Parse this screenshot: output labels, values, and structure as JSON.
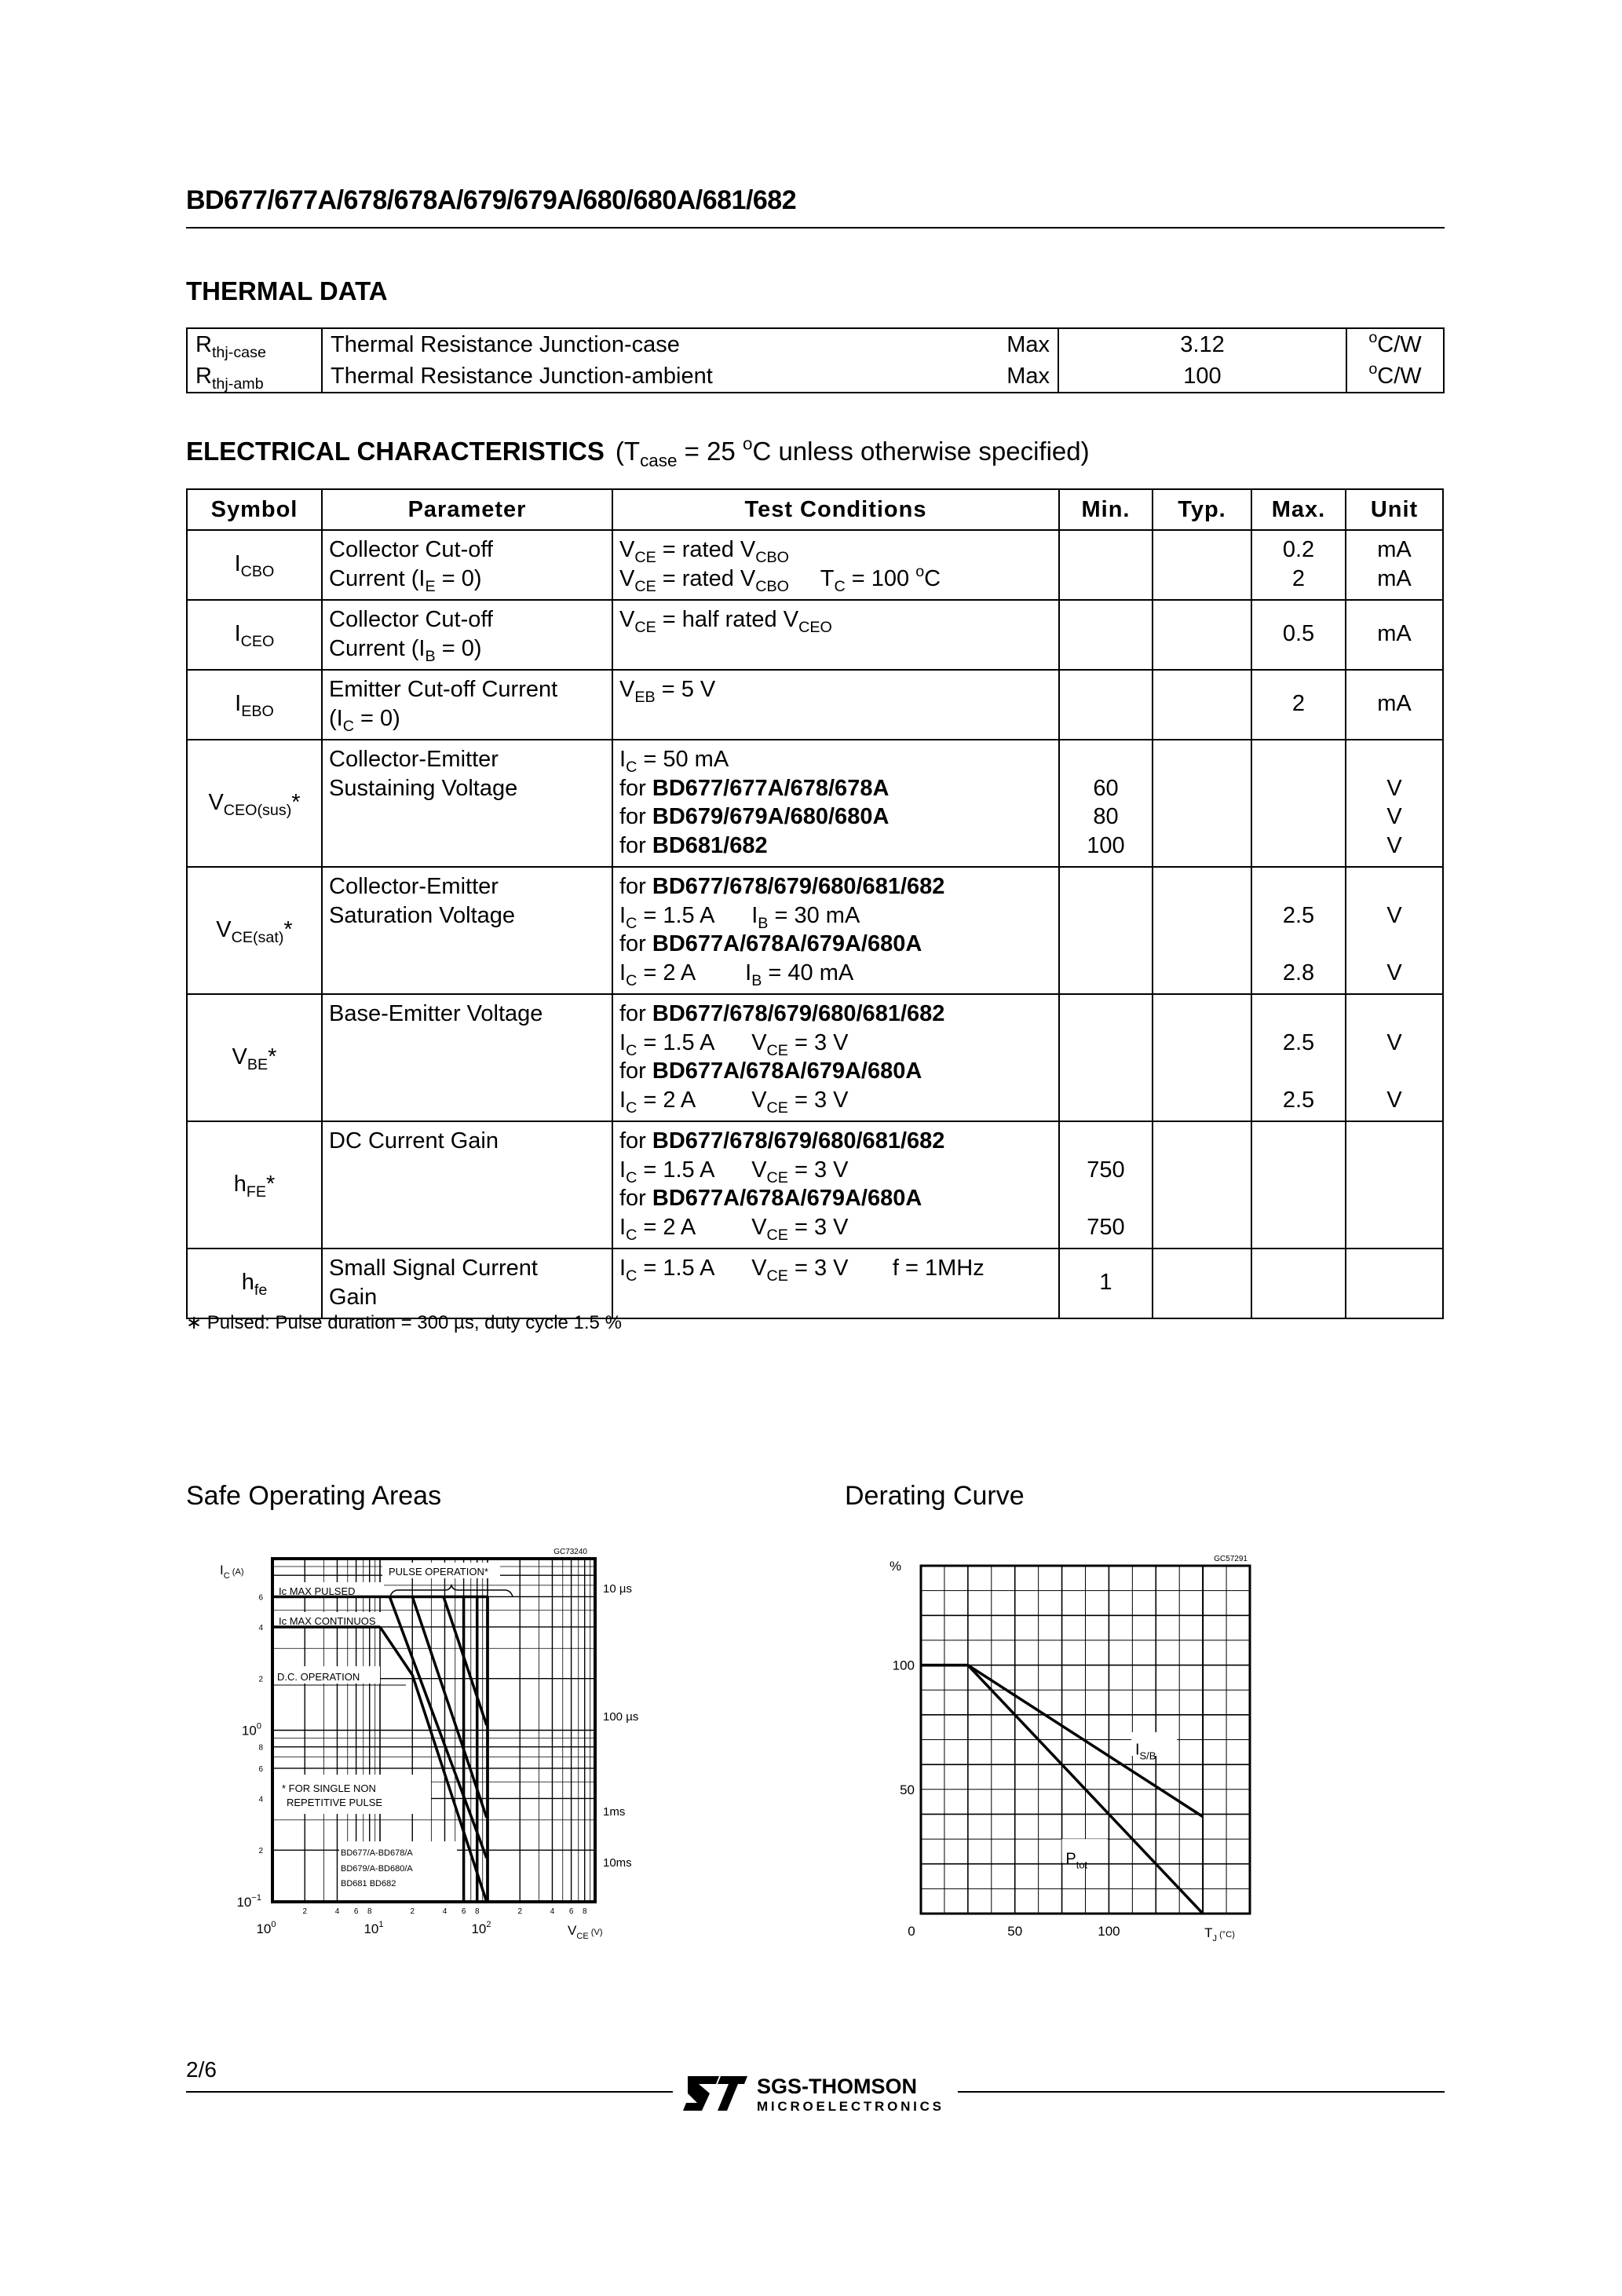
{
  "header": {
    "title": "BD677/677A/678/678A/679/679A/680/680A/681/682"
  },
  "thermal": {
    "heading": "THERMAL  DATA",
    "rows": [
      {
        "symbol": [
          [
            "R",
            {
              "sub": "thj-case"
            }
          ]
        ],
        "description": "Thermal   Resistance   Junction-case",
        "qualifier": "Max",
        "value": "3.12",
        "unit": [
          [
            {
              "sup": "o"
            },
            "C/W"
          ]
        ]
      },
      {
        "symbol": [
          [
            "R",
            {
              "sub": "thj-amb"
            }
          ]
        ],
        "description": "Thermal   Resistance   Junction-ambient",
        "qualifier": "Max",
        "value": "100",
        "unit": [
          [
            {
              "sup": "o"
            },
            "C/W"
          ]
        ]
      }
    ]
  },
  "electrical": {
    "heading": "ELECTRICAL  CHARACTERISTICS",
    "condition": [
      [
        "(T",
        {
          "sub": "case"
        },
        " = 25 ",
        {
          "sup": "o"
        },
        "C unless otherwise specified)"
      ]
    ],
    "columns": [
      "Symbol",
      "Parameter",
      "Test Conditions",
      "Min.",
      "Typ.",
      "Max.",
      "Unit"
    ],
    "rows": [
      {
        "symbol": [
          [
            "I",
            {
              "sub": "CBO"
            }
          ]
        ],
        "parameter": [
          [
            "Collector Cut-off"
          ],
          [
            "Current (I",
            {
              "sub": "E"
            },
            " = 0)"
          ]
        ],
        "conditions": [
          [
            "V",
            {
              "sub": "CE"
            },
            " = rated V",
            {
              "sub": "CBO"
            }
          ],
          [
            "V",
            {
              "sub": "CE"
            },
            " = rated V",
            {
              "sub": "CBO"
            },
            "     T",
            {
              "sub": "C"
            },
            " = 100 ",
            {
              "sup": "o"
            },
            "C"
          ]
        ],
        "min": [],
        "typ": [],
        "max": [
          [
            "0.2"
          ],
          [
            "2"
          ]
        ],
        "unit": [
          [
            "mA"
          ],
          [
            "mA"
          ]
        ]
      },
      {
        "symbol": [
          [
            "I",
            {
              "sub": "CEO"
            }
          ]
        ],
        "parameter": [
          [
            "Collector Cut-off"
          ],
          [
            "Current (I",
            {
              "sub": "B"
            },
            " = 0)"
          ]
        ],
        "conditions": [
          [
            "V",
            {
              "sub": "CE"
            },
            " = half rated V",
            {
              "sub": "CEO"
            }
          ]
        ],
        "min": [],
        "typ": [],
        "max": [
          [
            "0.5"
          ]
        ],
        "unit": [
          [
            "mA"
          ]
        ]
      },
      {
        "symbol": [
          [
            "I",
            {
              "sub": "EBO"
            }
          ]
        ],
        "parameter": [
          [
            "Emitter Cut-off Current"
          ],
          [
            "(I",
            {
              "sub": "C"
            },
            " = 0)"
          ]
        ],
        "conditions": [
          [
            "V",
            {
              "sub": "EB"
            },
            " = 5 V"
          ]
        ],
        "min": [],
        "typ": [],
        "max": [
          [
            "2"
          ]
        ],
        "unit": [
          [
            "mA"
          ]
        ]
      },
      {
        "symbol": [
          [
            "V",
            {
              "sub": "CEO(sus)"
            },
            "*"
          ]
        ],
        "parameter": [
          [
            "Collector-Emitter"
          ],
          [
            "Sustaining Voltage"
          ]
        ],
        "conditions": [
          [
            "I",
            {
              "sub": "C"
            },
            " = 50 mA"
          ],
          [
            "for ",
            {
              "b": "BD677/677A/678/678A"
            }
          ],
          [
            "for ",
            {
              "b": "BD679/679A/680/680A"
            }
          ],
          [
            "for ",
            {
              "b": "BD681/682"
            }
          ]
        ],
        "min": [
          [
            ""
          ],
          [
            "60"
          ],
          [
            "80"
          ],
          [
            "100"
          ]
        ],
        "typ": [],
        "max": [],
        "unit": [
          [
            ""
          ],
          [
            "V"
          ],
          [
            "V"
          ],
          [
            "V"
          ]
        ]
      },
      {
        "symbol": [
          [
            "V",
            {
              "sub": "CE(sat)"
            },
            "*"
          ]
        ],
        "parameter": [
          [
            "Collector-Emitter"
          ],
          [
            "Saturation Voltage"
          ]
        ],
        "conditions": [
          [
            "for ",
            {
              "b": "BD677/678/679/680/681/682"
            }
          ],
          [
            "I",
            {
              "sub": "C"
            },
            " = 1.5 A      I",
            {
              "sub": "B"
            },
            " = 30 mA"
          ],
          [
            "for ",
            {
              "b": "BD677A/678A/679A/680A"
            }
          ],
          [
            "I",
            {
              "sub": "C"
            },
            " = 2 A        I",
            {
              "sub": "B"
            },
            " = 40 mA"
          ]
        ],
        "min": [],
        "typ": [],
        "max": [
          [
            ""
          ],
          [
            "2.5"
          ],
          [
            ""
          ],
          [
            "2.8"
          ]
        ],
        "unit": [
          [
            ""
          ],
          [
            "V"
          ],
          [
            ""
          ],
          [
            "V"
          ]
        ]
      },
      {
        "symbol": [
          [
            "V",
            {
              "sub": "BE"
            },
            "*"
          ]
        ],
        "parameter": [
          [
            "Base-Emitter Voltage"
          ]
        ],
        "conditions": [
          [
            "for ",
            {
              "b": "BD677/678/679/680/681/682"
            }
          ],
          [
            "I",
            {
              "sub": "C"
            },
            " = 1.5 A      V",
            {
              "sub": "CE"
            },
            " = 3 V"
          ],
          [
            "for ",
            {
              "b": "BD677A/678A/679A/680A"
            }
          ],
          [
            "I",
            {
              "sub": "C"
            },
            " = 2 A         V",
            {
              "sub": "CE"
            },
            " = 3 V"
          ]
        ],
        "min": [],
        "typ": [],
        "max": [
          [
            ""
          ],
          [
            "2.5"
          ],
          [
            ""
          ],
          [
            "2.5"
          ]
        ],
        "unit": [
          [
            ""
          ],
          [
            "V"
          ],
          [
            ""
          ],
          [
            "V"
          ]
        ]
      },
      {
        "symbol": [
          [
            "h",
            {
              "sub": "FE"
            },
            "*"
          ]
        ],
        "parameter": [
          [
            "DC Current Gain"
          ]
        ],
        "conditions": [
          [
            "for ",
            {
              "b": "BD677/678/679/680/681/682"
            }
          ],
          [
            "I",
            {
              "sub": "C"
            },
            " = 1.5 A      V",
            {
              "sub": "CE"
            },
            " = 3 V"
          ],
          [
            "for ",
            {
              "b": "BD677A/678A/679A/680A"
            }
          ],
          [
            "I",
            {
              "sub": "C"
            },
            " = 2 A         V",
            {
              "sub": "CE"
            },
            " = 3 V"
          ]
        ],
        "min": [
          [
            ""
          ],
          [
            "750"
          ],
          [
            ""
          ],
          [
            "750"
          ]
        ],
        "typ": [],
        "max": [],
        "unit": []
      },
      {
        "symbol": [
          [
            "h",
            {
              "sub": "fe"
            }
          ]
        ],
        "parameter": [
          [
            "Small Signal Current"
          ],
          [
            "Gain"
          ]
        ],
        "conditions": [
          [
            "I",
            {
              "sub": "C"
            },
            " = 1.5 A      V",
            {
              "sub": "CE"
            },
            " = 3 V       f = 1MHz"
          ]
        ],
        "min": [
          [
            "1"
          ]
        ],
        "typ": [],
        "max": [],
        "unit": []
      }
    ],
    "footnote": "∗ Pulsed: Pulse duration = 300 µs, duty cycle 1.5 %"
  },
  "chart_data": [
    {
      "type": "line",
      "title": "Safe Operating Areas",
      "code": "GC73240",
      "xlabel": "V",
      "xlabel_sub": "CE",
      "xlabel_unit": "(V)",
      "ylabel": "I",
      "ylabel_sub": "C",
      "ylabel_unit": "(A)",
      "xscale": "log",
      "yscale": "log",
      "xlim": [
        1,
        1000
      ],
      "ylim": [
        0.1,
        10
      ],
      "grid": true,
      "x_major_ticks": [
        {
          "v": 1,
          "label": "10",
          "exp": "0"
        },
        {
          "v": 10,
          "label": "10",
          "exp": "1"
        },
        {
          "v": 100,
          "label": "10",
          "exp": "2"
        }
      ],
      "x_minor_ticks": [
        {
          "v": 2,
          "label": "2"
        },
        {
          "v": 4,
          "label": "4"
        },
        {
          "v": 6,
          "label": "6"
        },
        {
          "v": 8,
          "label": "8"
        },
        {
          "v": 20,
          "label": "2"
        },
        {
          "v": 40,
          "label": "4"
        },
        {
          "v": 60,
          "label": "6"
        },
        {
          "v": 80,
          "label": "8"
        },
        {
          "v": 200,
          "label": "2"
        },
        {
          "v": 400,
          "label": "4"
        },
        {
          "v": 600,
          "label": "6"
        },
        {
          "v": 800,
          "label": "8"
        }
      ],
      "y_major_ticks": [
        {
          "v": 0.1,
          "label": "10",
          "exp": "−1"
        },
        {
          "v": 1,
          "label": "10",
          "exp": "0"
        }
      ],
      "y_minor_ticks": [
        {
          "v": 0.2,
          "label": "2"
        },
        {
          "v": 0.4,
          "label": "4"
        },
        {
          "v": 0.6,
          "label": "6"
        },
        {
          "v": 0.8,
          "label": "8"
        },
        {
          "v": 2,
          "label": "2"
        },
        {
          "v": 4,
          "label": "4"
        },
        {
          "v": 6,
          "label": "6"
        }
      ],
      "series": [
        {
          "name": "Ic MAX PULSED",
          "x": [
            1,
            100
          ],
          "y": [
            6,
            6
          ]
        },
        {
          "name": "Ic MAX CONTINUOS",
          "x": [
            1,
            10
          ],
          "y": [
            4,
            4
          ]
        },
        {
          "name": "10 µs",
          "x": [
            100,
            100
          ],
          "y": [
            6,
            0.1
          ]
        },
        {
          "name": "100 µs",
          "x": [
            39,
            98
          ],
          "y": [
            6,
            1.07
          ]
        },
        {
          "name": "1ms",
          "x": [
            20,
            98
          ],
          "y": [
            6,
            0.31
          ]
        },
        {
          "name": "10ms",
          "x": [
            12.3,
            98
          ],
          "y": [
            6,
            0.18
          ]
        },
        {
          "name": "D.C. OPERATION",
          "x": [
            10,
            20,
            98
          ],
          "y": [
            4,
            2.1,
            0.1
          ]
        },
        {
          "name": "BD677/A-BD678/A",
          "x": [
            60,
            60
          ],
          "y": [
            6,
            0.1
          ]
        },
        {
          "name": "BD679/A-BD680/A",
          "x": [
            80,
            80
          ],
          "y": [
            6,
            0.1
          ]
        },
        {
          "name": "BD681    BD682",
          "x": [
            100,
            100
          ],
          "y": [
            6,
            0.1
          ]
        }
      ],
      "annotations": [
        "PULSE OPERATION*",
        "* FOR SINGLE NON",
        "REPETITIVE PULSE"
      ]
    },
    {
      "type": "line",
      "title": "Derating Curve",
      "code": "GC57291",
      "ylabel": "%",
      "xlabel": "T",
      "xlabel_sub": "J",
      "xlabel_unit": "(°C)",
      "xlim": [
        0,
        175
      ],
      "ylim": [
        0,
        140
      ],
      "grid": true,
      "x_ticks": [
        {
          "v": 0,
          "label": "0"
        },
        {
          "v": 50,
          "label": "50"
        },
        {
          "v": 100,
          "label": "100"
        }
      ],
      "y_ticks": [
        {
          "v": 50,
          "label": "50"
        },
        {
          "v": 100,
          "label": "100"
        }
      ],
      "series": [
        {
          "name": "I",
          "name_sub": "S/B",
          "x": [
            0,
            25,
            150
          ],
          "y": [
            100,
            100,
            39
          ]
        },
        {
          "name": "P",
          "name_sub": "tot",
          "x": [
            0,
            25,
            150
          ],
          "y": [
            100,
            100,
            0
          ]
        }
      ]
    }
  ],
  "footer": {
    "page": "2/6",
    "brand": "SGS-THOMSON",
    "brand_sub": "MICROELECTRONICS",
    "logo": "ST"
  }
}
